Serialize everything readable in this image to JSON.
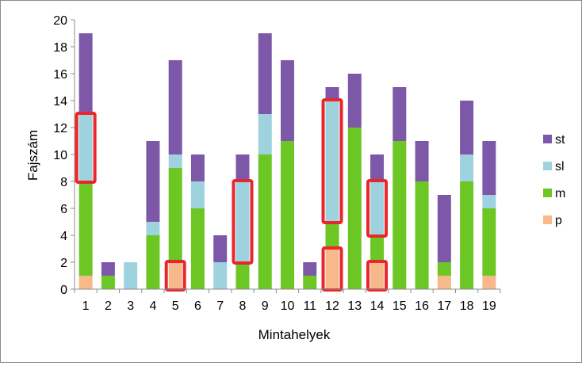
{
  "chart_data": {
    "type": "bar",
    "stacked": true,
    "xlabel": "Mintahelyek",
    "ylabel": "Fajszám",
    "ylim": [
      0,
      20
    ],
    "yticks": [
      0,
      2,
      4,
      6,
      8,
      10,
      12,
      14,
      16,
      18,
      20
    ],
    "grid": false,
    "legend_position": "right",
    "categories": [
      "1",
      "2",
      "3",
      "4",
      "5",
      "6",
      "7",
      "8",
      "9",
      "10",
      "11",
      "12",
      "13",
      "14",
      "15",
      "16",
      "17",
      "18",
      "19"
    ],
    "series": [
      {
        "name": "p",
        "color": "#F7B98A",
        "values": [
          1,
          0,
          0,
          0,
          2,
          0,
          0,
          0,
          0,
          0,
          0,
          3,
          0,
          2,
          0,
          0,
          1,
          0,
          1
        ]
      },
      {
        "name": "m",
        "color": "#6CC624",
        "values": [
          7,
          1,
          0,
          4,
          7,
          6,
          0,
          2,
          10,
          11,
          1,
          2,
          12,
          2,
          11,
          8,
          1,
          8,
          5
        ]
      },
      {
        "name": "sl",
        "color": "#9ED2DE",
        "values": [
          5,
          0,
          2,
          1,
          1,
          2,
          2,
          6,
          3,
          0,
          0,
          9,
          0,
          4,
          0,
          0,
          0,
          2,
          1
        ]
      },
      {
        "name": "st",
        "color": "#7E58A8",
        "values": [
          6,
          1,
          0,
          6,
          7,
          2,
          2,
          2,
          6,
          6,
          1,
          1,
          4,
          2,
          4,
          3,
          5,
          4,
          4
        ]
      }
    ],
    "highlights": [
      {
        "category": "1",
        "series": "sl",
        "color": "#E8262B"
      },
      {
        "category": "5",
        "series": "p",
        "color": "#E8262B"
      },
      {
        "category": "8",
        "series": "sl",
        "color": "#E8262B"
      },
      {
        "category": "12",
        "series": "sl",
        "color": "#E8262B"
      },
      {
        "category": "12",
        "series": "p",
        "color": "#E8262B"
      },
      {
        "category": "14",
        "series": "sl",
        "color": "#E8262B"
      },
      {
        "category": "14",
        "series": "p",
        "color": "#E8262B"
      }
    ]
  }
}
